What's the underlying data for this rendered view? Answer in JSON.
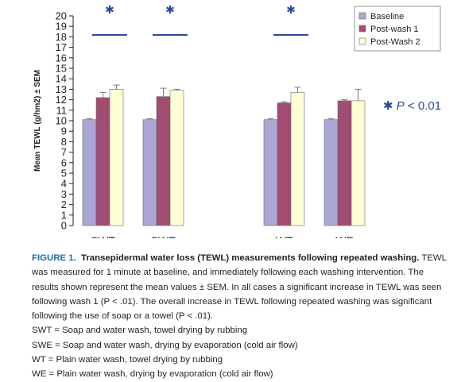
{
  "chart_data": {
    "type": "bar",
    "categories": [
      "SWT",
      "SWE",
      "WT",
      "WE"
    ],
    "category_slots": [
      0,
      1,
      3,
      4
    ],
    "ylabel": "Mean TEWL (g/hm2) ± SEM",
    "ylim": [
      0,
      20
    ],
    "yticks": [
      0,
      1,
      2,
      3,
      4,
      5,
      6,
      7,
      8,
      9,
      10,
      11,
      12,
      13,
      14,
      15,
      16,
      17,
      18,
      19,
      20
    ],
    "grid": false,
    "legend_position": "top-right",
    "series": [
      {
        "name": "Baseline",
        "color": "#aaa7d4",
        "values": [
          10.1,
          10.1,
          10.1,
          10.1
        ],
        "errors": [
          0.1,
          0.1,
          0.1,
          0.1
        ]
      },
      {
        "name": "Post-wash 1",
        "color": "#a34c73",
        "values": [
          12.2,
          12.3,
          11.7,
          11.9
        ],
        "errors": [
          0.5,
          0.8,
          0.1,
          0.1
        ]
      },
      {
        "name": "Post-Wash 2",
        "color": "#ffffd4",
        "values": [
          13.0,
          12.9,
          12.7,
          11.9
        ],
        "errors": [
          0.4,
          0.1,
          0.5,
          1.1
        ]
      }
    ],
    "significance": [
      {
        "categories": [
          "SWT"
        ],
        "symbol": "✱"
      },
      {
        "categories": [
          "SWE"
        ],
        "symbol": "✱"
      },
      {
        "categories": [
          "WT"
        ],
        "symbol": "✱"
      }
    ],
    "significance_color": "#2a4b9b",
    "significance_note": {
      "star": "✱",
      "text": "P",
      "suffix": " < 0.01"
    }
  },
  "caption": {
    "label": "FIGURE 1.",
    "title": "Transepidermal water loss (TEWL) measurements following repeated washing.",
    "body": "TEWL was measured for 1 minute at baseline, and immediately following each washing intervention. The results shown represent the mean values ± SEM. In all cases a significant increase in TEWL was seen following wash 1 (P < .01). The overall increase in TEWL following repeated washing was significant following the use of soap or a towel (P < .01).",
    "definitions": [
      "SWT = Soap and water wash, towel drying by rubbing",
      "SWE = Soap and water wash, drying by evaporation (cold air flow)",
      "WT = Plain water wash, towel drying by rubbing",
      "WE = Plain water wash, drying by evaporation (cold air flow)"
    ]
  }
}
